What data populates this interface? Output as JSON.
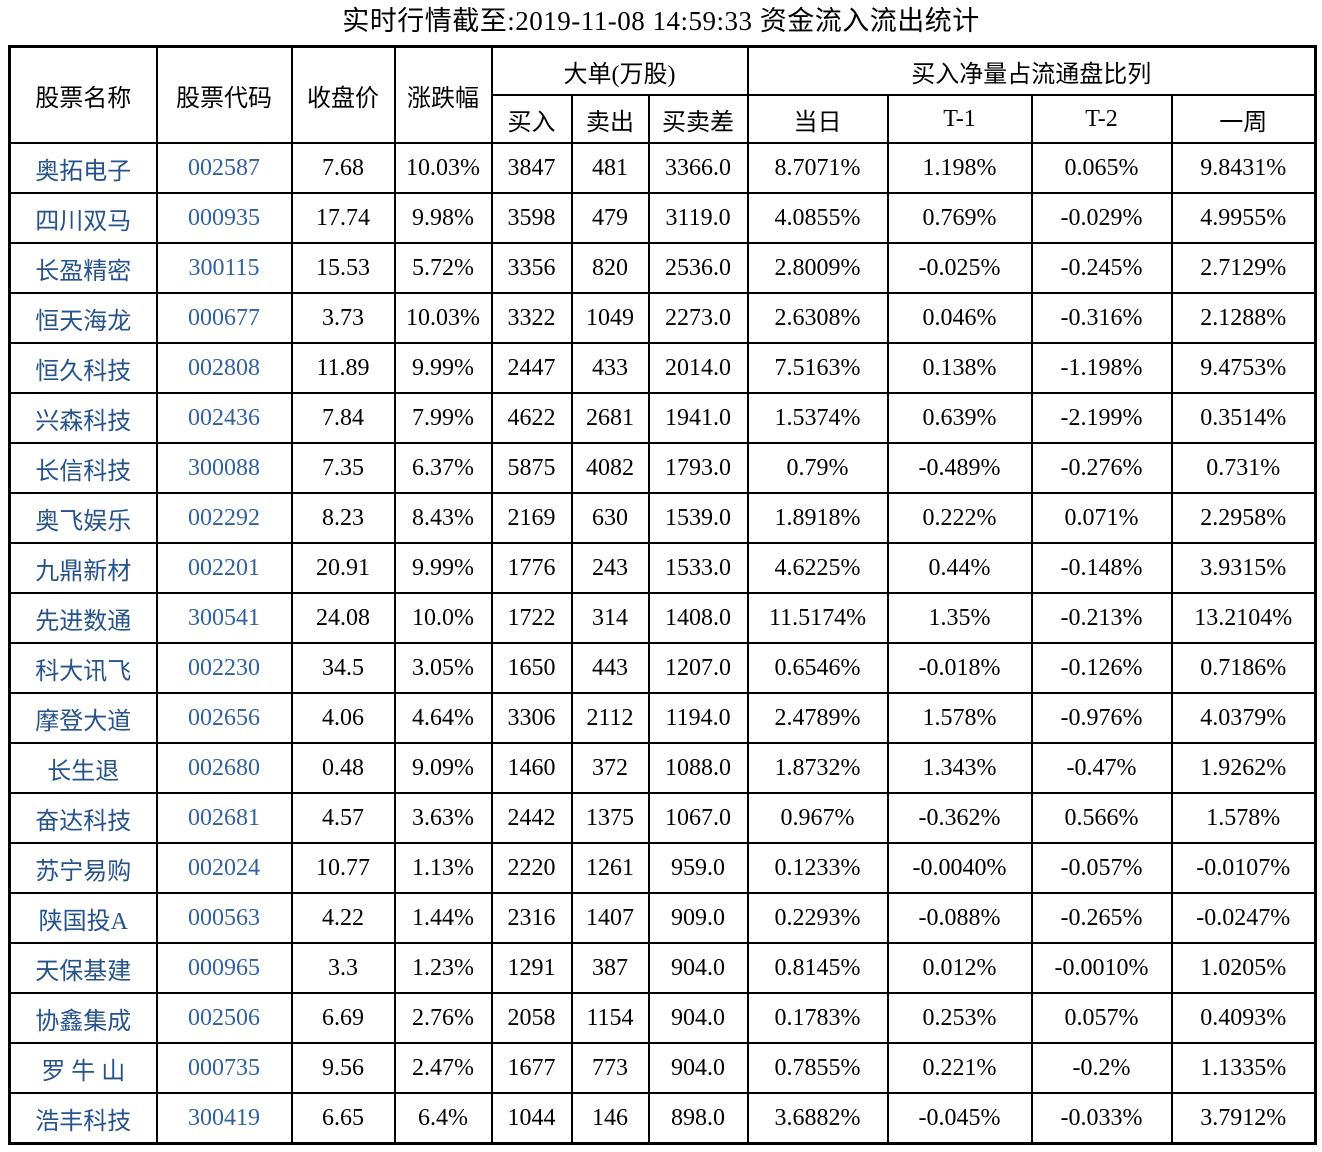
{
  "title": "实时行情截至:2019-11-08 14:59:33 资金流入流出统计",
  "colors": {
    "stock_name_text": "#26538C",
    "stock_code_text": "#31619F",
    "data_text": "#000000",
    "border": "#000000",
    "background": "#FFFFFF"
  },
  "table": {
    "group_headers": {
      "big_order": "大单(万股)",
      "net_buy_ratio": "买入净量占流通盘比列"
    },
    "headers": {
      "name": "股票名称",
      "code": "股票代码",
      "close": "收盘价",
      "change": "涨跌幅",
      "buy": "买入",
      "sell": "卖出",
      "diff": "买卖差",
      "day": "当日",
      "t1": "T-1",
      "t2": "T-2",
      "week": "一周"
    },
    "rows": [
      [
        "奥拓电子",
        "002587",
        "7.68",
        "10.03%",
        "3847",
        "481",
        "3366.0",
        "8.7071%",
        "1.198%",
        "0.065%",
        "9.8431%"
      ],
      [
        "四川双马",
        "000935",
        "17.74",
        "9.98%",
        "3598",
        "479",
        "3119.0",
        "4.0855%",
        "0.769%",
        "-0.029%",
        "4.9955%"
      ],
      [
        "长盈精密",
        "300115",
        "15.53",
        "5.72%",
        "3356",
        "820",
        "2536.0",
        "2.8009%",
        "-0.025%",
        "-0.245%",
        "2.7129%"
      ],
      [
        "恒天海龙",
        "000677",
        "3.73",
        "10.03%",
        "3322",
        "1049",
        "2273.0",
        "2.6308%",
        "0.046%",
        "-0.316%",
        "2.1288%"
      ],
      [
        "恒久科技",
        "002808",
        "11.89",
        "9.99%",
        "2447",
        "433",
        "2014.0",
        "7.5163%",
        "0.138%",
        "-1.198%",
        "9.4753%"
      ],
      [
        "兴森科技",
        "002436",
        "7.84",
        "7.99%",
        "4622",
        "2681",
        "1941.0",
        "1.5374%",
        "0.639%",
        "-2.199%",
        "0.3514%"
      ],
      [
        "长信科技",
        "300088",
        "7.35",
        "6.37%",
        "5875",
        "4082",
        "1793.0",
        "0.79%",
        "-0.489%",
        "-0.276%",
        "0.731%"
      ],
      [
        "奥飞娱乐",
        "002292",
        "8.23",
        "8.43%",
        "2169",
        "630",
        "1539.0",
        "1.8918%",
        "0.222%",
        "0.071%",
        "2.2958%"
      ],
      [
        "九鼎新材",
        "002201",
        "20.91",
        "9.99%",
        "1776",
        "243",
        "1533.0",
        "4.6225%",
        "0.44%",
        "-0.148%",
        "3.9315%"
      ],
      [
        "先进数通",
        "300541",
        "24.08",
        "10.0%",
        "1722",
        "314",
        "1408.0",
        "11.5174%",
        "1.35%",
        "-0.213%",
        "13.2104%"
      ],
      [
        "科大讯飞",
        "002230",
        "34.5",
        "3.05%",
        "1650",
        "443",
        "1207.0",
        "0.6546%",
        "-0.018%",
        "-0.126%",
        "0.7186%"
      ],
      [
        "摩登大道",
        "002656",
        "4.06",
        "4.64%",
        "3306",
        "2112",
        "1194.0",
        "2.4789%",
        "1.578%",
        "-0.976%",
        "4.0379%"
      ],
      [
        "长生退",
        "002680",
        "0.48",
        "9.09%",
        "1460",
        "372",
        "1088.0",
        "1.8732%",
        "1.343%",
        "-0.47%",
        "1.9262%"
      ],
      [
        "奋达科技",
        "002681",
        "4.57",
        "3.63%",
        "2442",
        "1375",
        "1067.0",
        "0.967%",
        "-0.362%",
        "0.566%",
        "1.578%"
      ],
      [
        "苏宁易购",
        "002024",
        "10.77",
        "1.13%",
        "2220",
        "1261",
        "959.0",
        "0.1233%",
        "-0.0040%",
        "-0.057%",
        "-0.0107%"
      ],
      [
        "陕国投A",
        "000563",
        "4.22",
        "1.44%",
        "2316",
        "1407",
        "909.0",
        "0.2293%",
        "-0.088%",
        "-0.265%",
        "-0.0247%"
      ],
      [
        "天保基建",
        "000965",
        "3.3",
        "1.23%",
        "1291",
        "387",
        "904.0",
        "0.8145%",
        "0.012%",
        "-0.0010%",
        "1.0205%"
      ],
      [
        "协鑫集成",
        "002506",
        "6.69",
        "2.76%",
        "2058",
        "1154",
        "904.0",
        "0.1783%",
        "0.253%",
        "0.057%",
        "0.4093%"
      ],
      [
        "罗 牛 山",
        "000735",
        "9.56",
        "2.47%",
        "1677",
        "773",
        "904.0",
        "0.7855%",
        "0.221%",
        "-0.2%",
        "1.1335%"
      ],
      [
        "浩丰科技",
        "300419",
        "6.65",
        "6.4%",
        "1044",
        "146",
        "898.0",
        "3.6882%",
        "-0.045%",
        "-0.033%",
        "3.7912%"
      ]
    ]
  }
}
